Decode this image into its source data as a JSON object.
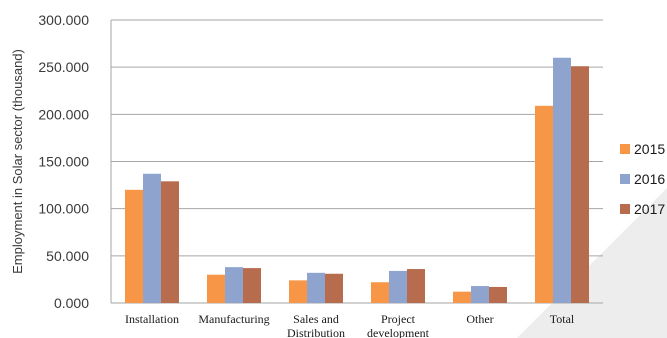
{
  "chart_data": {
    "type": "bar",
    "title": "",
    "xlabel": "",
    "ylabel": "Employment  in  Solar sector  (thousand)",
    "ylim": [
      0,
      300
    ],
    "yticks": [
      "0.000",
      "50.000",
      "100.000",
      "150.000",
      "200.000",
      "250.000",
      "300.000"
    ],
    "grid": true,
    "legend_position": "right",
    "categories": [
      [
        "Installation"
      ],
      [
        "Manufacturing"
      ],
      [
        "Sales and",
        "Distribution"
      ],
      [
        "Project",
        "development"
      ],
      [
        "Other"
      ],
      [
        "Total"
      ]
    ],
    "series": [
      {
        "name": "2015",
        "color": "#F79646",
        "values": [
          120,
          30,
          24,
          22,
          12,
          209
        ]
      },
      {
        "name": "2016",
        "color": "#8EA4CF",
        "values": [
          137,
          38,
          32,
          34,
          18,
          260
        ]
      },
      {
        "name": "2017",
        "color": "#B86C4E",
        "values": [
          129,
          37,
          31,
          36,
          17,
          251
        ]
      }
    ]
  }
}
